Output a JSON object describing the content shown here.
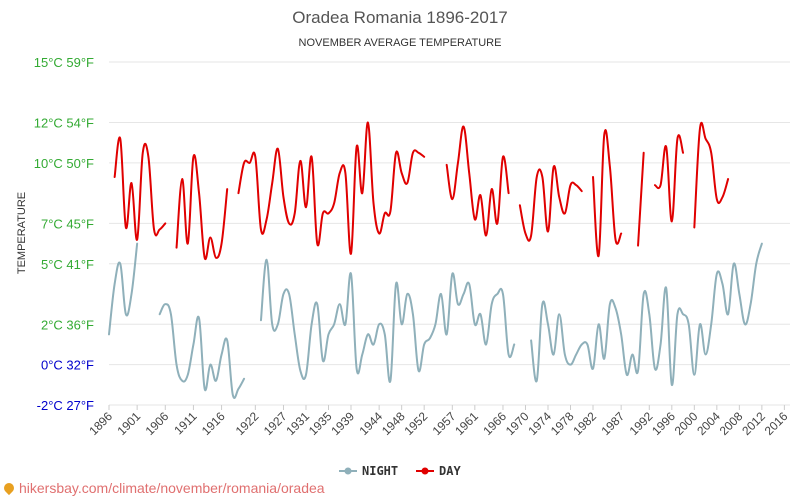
{
  "chart_data": {
    "type": "line",
    "title": "Oradea Romania 1896-2017",
    "subtitle": "NOVEMBER AVERAGE TEMPERATURE",
    "ylabel": "TEMPERATURE",
    "xlabel": "",
    "ylim": [
      -2,
      15
    ],
    "xlim": [
      1896,
      2017
    ],
    "grid": true,
    "legend_position": "bottom-center",
    "y_ticks": [
      {
        "value": -2,
        "label": "-2°C 27°F",
        "color": "#0000cc"
      },
      {
        "value": 0,
        "label": "0°C 32°F",
        "color": "#0000cc"
      },
      {
        "value": 2,
        "label": "2°C 36°F",
        "color": "#33aa33"
      },
      {
        "value": 5,
        "label": "5°C 41°F",
        "color": "#33aa33"
      },
      {
        "value": 7,
        "label": "7°C 45°F",
        "color": "#33aa33"
      },
      {
        "value": 10,
        "label": "10°C 50°F",
        "color": "#33aa33"
      },
      {
        "value": 12,
        "label": "12°C 54°F",
        "color": "#33aa33"
      },
      {
        "value": 15,
        "label": "15°C 59°F",
        "color": "#33aa33"
      }
    ],
    "x_ticks": [
      "1896",
      "1901",
      "1906",
      "1911",
      "1916",
      "1922",
      "1927",
      "1931",
      "1935",
      "1939",
      "1944",
      "1948",
      "1952",
      "1957",
      "1961",
      "1966",
      "1970",
      "1974",
      "1978",
      "1982",
      "1987",
      "1992",
      "1996",
      "2000",
      "2004",
      "2008",
      "2012",
      "2016"
    ],
    "series": [
      {
        "name": "NIGHT",
        "color": "#8fb0ba",
        "points": [
          [
            1896,
            1.5
          ],
          [
            1897,
            4.0
          ],
          [
            1898,
            5.0
          ],
          [
            1899,
            2.5
          ],
          [
            1900,
            3.5
          ],
          [
            1901,
            6.0
          ],
          [
            1905,
            2.5
          ],
          [
            1906,
            3.0
          ],
          [
            1907,
            2.5
          ],
          [
            1908,
            0.0
          ],
          [
            1909,
            -0.8
          ],
          [
            1910,
            -0.5
          ],
          [
            1911,
            1.0
          ],
          [
            1912,
            2.3
          ],
          [
            1913,
            -1.2
          ],
          [
            1914,
            0.0
          ],
          [
            1915,
            -0.8
          ],
          [
            1916,
            0.5
          ],
          [
            1917,
            1.2
          ],
          [
            1918,
            -1.5
          ],
          [
            1919,
            -1.2
          ],
          [
            1920,
            -0.7
          ],
          [
            1923,
            2.2
          ],
          [
            1924,
            5.2
          ],
          [
            1925,
            2.0
          ],
          [
            1926,
            2.0
          ],
          [
            1927,
            3.5
          ],
          [
            1928,
            3.5
          ],
          [
            1929,
            1.5
          ],
          [
            1930,
            -0.3
          ],
          [
            1931,
            -0.5
          ],
          [
            1932,
            2.0
          ],
          [
            1933,
            3.0
          ],
          [
            1934,
            0.2
          ],
          [
            1935,
            1.5
          ],
          [
            1936,
            2.0
          ],
          [
            1937,
            3.0
          ],
          [
            1938,
            2.0
          ],
          [
            1939,
            4.5
          ],
          [
            1940,
            -0.2
          ],
          [
            1941,
            0.5
          ],
          [
            1942,
            1.5
          ],
          [
            1943,
            1.0
          ],
          [
            1944,
            2.0
          ],
          [
            1945,
            1.5
          ],
          [
            1946,
            -0.8
          ],
          [
            1947,
            4.0
          ],
          [
            1948,
            2.0
          ],
          [
            1949,
            3.5
          ],
          [
            1950,
            2.5
          ],
          [
            1951,
            -0.3
          ],
          [
            1952,
            1.0
          ],
          [
            1953,
            1.3
          ],
          [
            1954,
            2.0
          ],
          [
            1955,
            3.5
          ],
          [
            1956,
            1.5
          ],
          [
            1957,
            4.5
          ],
          [
            1958,
            3.0
          ],
          [
            1959,
            3.5
          ],
          [
            1960,
            4.0
          ],
          [
            1961,
            2.0
          ],
          [
            1962,
            2.5
          ],
          [
            1963,
            1.0
          ],
          [
            1964,
            3.0
          ],
          [
            1965,
            3.5
          ],
          [
            1966,
            3.5
          ],
          [
            1967,
            0.5
          ],
          [
            1968,
            1.0
          ],
          [
            1971,
            1.2
          ],
          [
            1972,
            -0.8
          ],
          [
            1973,
            3.0
          ],
          [
            1974,
            2.0
          ],
          [
            1975,
            0.5
          ],
          [
            1976,
            2.5
          ],
          [
            1977,
            0.5
          ],
          [
            1978,
            0.0
          ],
          [
            1979,
            0.5
          ],
          [
            1980,
            1.0
          ],
          [
            1981,
            1.0
          ],
          [
            1982,
            -0.2
          ],
          [
            1983,
            2.0
          ],
          [
            1984,
            0.3
          ],
          [
            1985,
            3.0
          ],
          [
            1986,
            2.8
          ],
          [
            1987,
            1.5
          ],
          [
            1988,
            -0.5
          ],
          [
            1989,
            0.5
          ],
          [
            1990,
            -0.3
          ],
          [
            1991,
            3.5
          ],
          [
            1992,
            2.5
          ],
          [
            1993,
            -0.2
          ],
          [
            1994,
            1.0
          ],
          [
            1995,
            3.8
          ],
          [
            1996,
            -1.0
          ],
          [
            1997,
            2.5
          ],
          [
            1998,
            2.5
          ],
          [
            1999,
            2.0
          ],
          [
            2000,
            -0.5
          ],
          [
            2001,
            2.0
          ],
          [
            2002,
            0.5
          ],
          [
            2003,
            2.0
          ],
          [
            2004,
            4.5
          ],
          [
            2005,
            4.0
          ],
          [
            2006,
            2.5
          ],
          [
            2007,
            5.0
          ],
          [
            2008,
            3.5
          ],
          [
            2009,
            2.0
          ],
          [
            2010,
            3.0
          ],
          [
            2011,
            5.0
          ],
          [
            2012,
            6.0
          ]
        ]
      },
      {
        "name": "DAY",
        "color": "#e00000",
        "points": [
          [
            1897,
            9.3
          ],
          [
            1898,
            11.2
          ],
          [
            1899,
            6.8
          ],
          [
            1900,
            9.0
          ],
          [
            1901,
            6.2
          ],
          [
            1902,
            10.5
          ],
          [
            1903,
            10.3
          ],
          [
            1904,
            6.7
          ],
          [
            1905,
            6.7
          ],
          [
            1906,
            7.0
          ],
          [
            1908,
            5.8
          ],
          [
            1909,
            9.2
          ],
          [
            1910,
            6.0
          ],
          [
            1911,
            10.3
          ],
          [
            1912,
            8.5
          ],
          [
            1913,
            5.3
          ],
          [
            1914,
            6.3
          ],
          [
            1915,
            5.3
          ],
          [
            1916,
            6.0
          ],
          [
            1917,
            8.7
          ],
          [
            1919,
            8.5
          ],
          [
            1920,
            10.0
          ],
          [
            1921,
            10.0
          ],
          [
            1922,
            10.3
          ],
          [
            1923,
            6.7
          ],
          [
            1924,
            7.2
          ],
          [
            1925,
            9.0
          ],
          [
            1926,
            10.7
          ],
          [
            1927,
            8.3
          ],
          [
            1928,
            7.0
          ],
          [
            1929,
            7.5
          ],
          [
            1930,
            10.1
          ],
          [
            1931,
            7.8
          ],
          [
            1932,
            10.3
          ],
          [
            1933,
            6.0
          ],
          [
            1934,
            7.5
          ],
          [
            1935,
            7.5
          ],
          [
            1936,
            8.0
          ],
          [
            1937,
            9.5
          ],
          [
            1938,
            9.5
          ],
          [
            1939,
            5.5
          ],
          [
            1940,
            10.8
          ],
          [
            1941,
            8.5
          ],
          [
            1942,
            12.0
          ],
          [
            1943,
            8.0
          ],
          [
            1944,
            6.5
          ],
          [
            1945,
            7.5
          ],
          [
            1946,
            7.6
          ],
          [
            1947,
            10.5
          ],
          [
            1948,
            9.5
          ],
          [
            1949,
            9.0
          ],
          [
            1950,
            10.5
          ],
          [
            1951,
            10.5
          ],
          [
            1952,
            10.3
          ],
          [
            1956,
            9.9
          ],
          [
            1957,
            8.2
          ],
          [
            1958,
            10.0
          ],
          [
            1959,
            11.8
          ],
          [
            1960,
            9.5
          ],
          [
            1961,
            7.2
          ],
          [
            1962,
            8.4
          ],
          [
            1963,
            6.4
          ],
          [
            1964,
            8.7
          ],
          [
            1965,
            7.0
          ],
          [
            1966,
            10.3
          ],
          [
            1967,
            8.5
          ],
          [
            1969,
            7.9
          ],
          [
            1970,
            6.5
          ],
          [
            1971,
            6.4
          ],
          [
            1972,
            9.3
          ],
          [
            1973,
            9.3
          ],
          [
            1974,
            6.6
          ],
          [
            1975,
            9.8
          ],
          [
            1976,
            8.3
          ],
          [
            1977,
            7.5
          ],
          [
            1978,
            8.9
          ],
          [
            1979,
            8.9
          ],
          [
            1980,
            8.6
          ],
          [
            1982,
            9.3
          ],
          [
            1983,
            5.4
          ],
          [
            1984,
            11.4
          ],
          [
            1985,
            9.8
          ],
          [
            1986,
            6.2
          ],
          [
            1987,
            6.5
          ],
          [
            1990,
            5.9
          ],
          [
            1991,
            10.5
          ],
          [
            1993,
            8.9
          ],
          [
            1994,
            8.9
          ],
          [
            1995,
            10.8
          ],
          [
            1996,
            7.1
          ],
          [
            1997,
            11.2
          ],
          [
            1998,
            10.5
          ],
          [
            2000,
            6.8
          ],
          [
            2001,
            11.7
          ],
          [
            2002,
            11.2
          ],
          [
            2003,
            10.5
          ],
          [
            2004,
            8.2
          ],
          [
            2005,
            8.3
          ],
          [
            2006,
            9.2
          ]
        ]
      }
    ]
  },
  "legend": {
    "night_label": "NIGHT",
    "day_label": "DAY"
  },
  "source": {
    "text": "hikersbay.com/climate/november/romania/oradea"
  },
  "colors": {
    "night": "#8fb0ba",
    "day": "#e00000",
    "grid": "#e6e6e6"
  }
}
